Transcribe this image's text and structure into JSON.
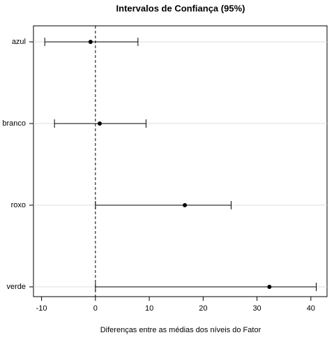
{
  "chart_data": {
    "type": "interval",
    "title": "Intervalos de Confiança (95%)",
    "x_label": "Diferenças entre as médias dos níveis do Fator",
    "categories": [
      "azul",
      "branco",
      "roxo",
      "verde"
    ],
    "values": [
      -0.9,
      0.8,
      16.6,
      32.3
    ],
    "lower": [
      -9.4,
      -7.6,
      0.0,
      0.0
    ],
    "upper": [
      7.9,
      9.4,
      25.2,
      41.0
    ],
    "color": "#000000",
    "reference_line": 0,
    "xlim": [
      -11.5,
      43
    ],
    "xticks": [
      -10,
      0,
      10,
      20,
      30,
      40
    ],
    "grid": true
  }
}
